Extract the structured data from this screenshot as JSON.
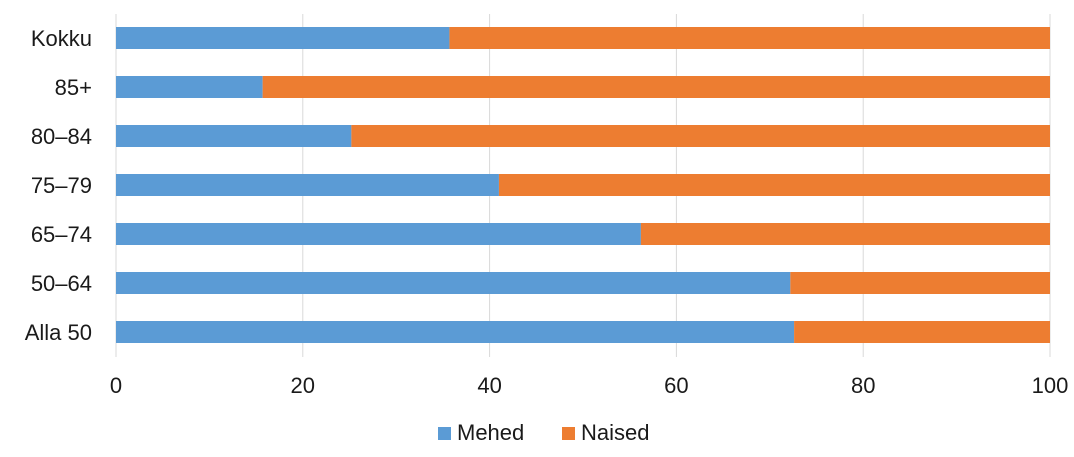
{
  "chart_data": {
    "type": "bar",
    "orientation": "horizontal",
    "stacked": true,
    "categories": [
      "Kokku",
      "85+",
      "80–84",
      "75–79",
      "65–74",
      "50–64",
      "Alla 50"
    ],
    "series": [
      {
        "name": "Mehed",
        "color": "#5b9bd5",
        "values": [
          35.7,
          15.7,
          25.2,
          41.0,
          56.2,
          72.2,
          72.6
        ]
      },
      {
        "name": "Naised",
        "color": "#ed7d31",
        "values": [
          64.3,
          84.3,
          74.8,
          59.0,
          43.8,
          27.8,
          27.4
        ]
      }
    ],
    "xlim": [
      0,
      100
    ],
    "xticks": [
      "0",
      "20",
      "40",
      "60",
      "80",
      "100"
    ],
    "xtick_values": [
      0,
      20,
      40,
      60,
      80,
      100
    ],
    "grid": "vertical",
    "gridline_color": "#d9d9d9",
    "legend_position": "bottom",
    "title": "",
    "xlabel": "",
    "ylabel": ""
  }
}
